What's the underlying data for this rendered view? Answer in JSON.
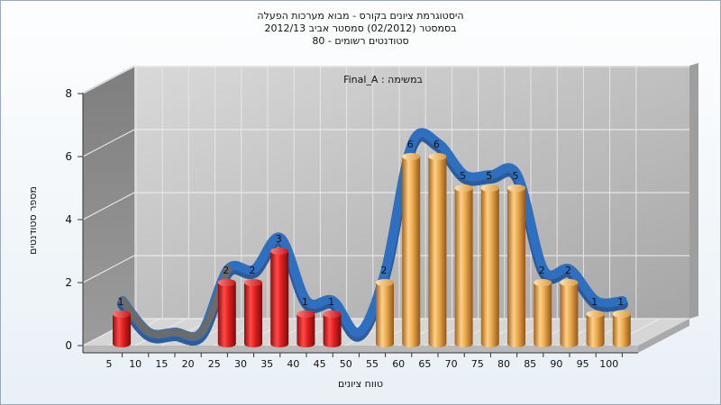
{
  "chart_data": {
    "type": "bar",
    "title": [
      "היסטוגרמת ציונים בקורס - מבוא מערכות הפעלה",
      "בסמסטר  (02/2012)  סמסטר אביב 2012/13",
      "סטודנטים רשומים - 80"
    ],
    "subtitle": "במשימה : Final_A",
    "xlabel": "טווח ציונים",
    "ylabel": "מספר סטודנטים",
    "ylim": [
      0,
      8
    ],
    "yticks": [
      "0",
      "2",
      "4",
      "6",
      "8"
    ],
    "categories": [
      "5",
      "10",
      "15",
      "20",
      "25",
      "30",
      "35",
      "40",
      "45",
      "50",
      "55",
      "60",
      "65",
      "70",
      "75",
      "80",
      "85",
      "90",
      "95",
      "100"
    ],
    "values": [
      1,
      0,
      0,
      0,
      2,
      2,
      3,
      1,
      1,
      0,
      2,
      6,
      6,
      5,
      5,
      5,
      2,
      2,
      1,
      1
    ],
    "curve": [
      1,
      0,
      0,
      0,
      2,
      2,
      3,
      1,
      1,
      0,
      2,
      6,
      6,
      5,
      5,
      5,
      2,
      2,
      1,
      1
    ],
    "failing_below": 55,
    "grid": true,
    "colors": {
      "fail_bar": "#e01e1e",
      "pass_bar": "#e8a84a",
      "curve": "#2f6fc0",
      "curve_low": "#6b6b6b",
      "side_wall": "#8c8c8c",
      "back_wall": "#bdbdbd",
      "floor": "#d6d6d6"
    }
  }
}
